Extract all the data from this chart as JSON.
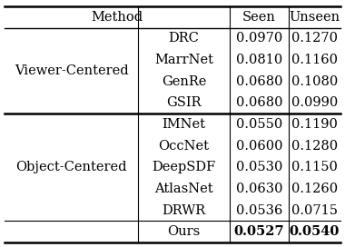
{
  "section1_label": "Viewer-Centered",
  "section1_rows": [
    [
      "DRC",
      "0.0970",
      "0.1270"
    ],
    [
      "MarrNet",
      "0.0810",
      "0.1160"
    ],
    [
      "GenRe",
      "0.0680",
      "0.1080"
    ],
    [
      "GSIR",
      "0.0680",
      "0.0990"
    ]
  ],
  "section2_label": "Object-Centered",
  "section2_rows": [
    [
      "IMNet",
      "0.0550",
      "0.1190"
    ],
    [
      "OccNet",
      "0.0600",
      "0.1280"
    ],
    [
      "DeepSDF",
      "0.0530",
      "0.1150"
    ],
    [
      "AtlasNet",
      "0.0630",
      "0.1260"
    ],
    [
      "DRWR",
      "0.0536",
      "0.0715"
    ]
  ],
  "ours_row": [
    "Ours",
    "0.0527",
    "0.0540"
  ],
  "font_size": 10.5
}
